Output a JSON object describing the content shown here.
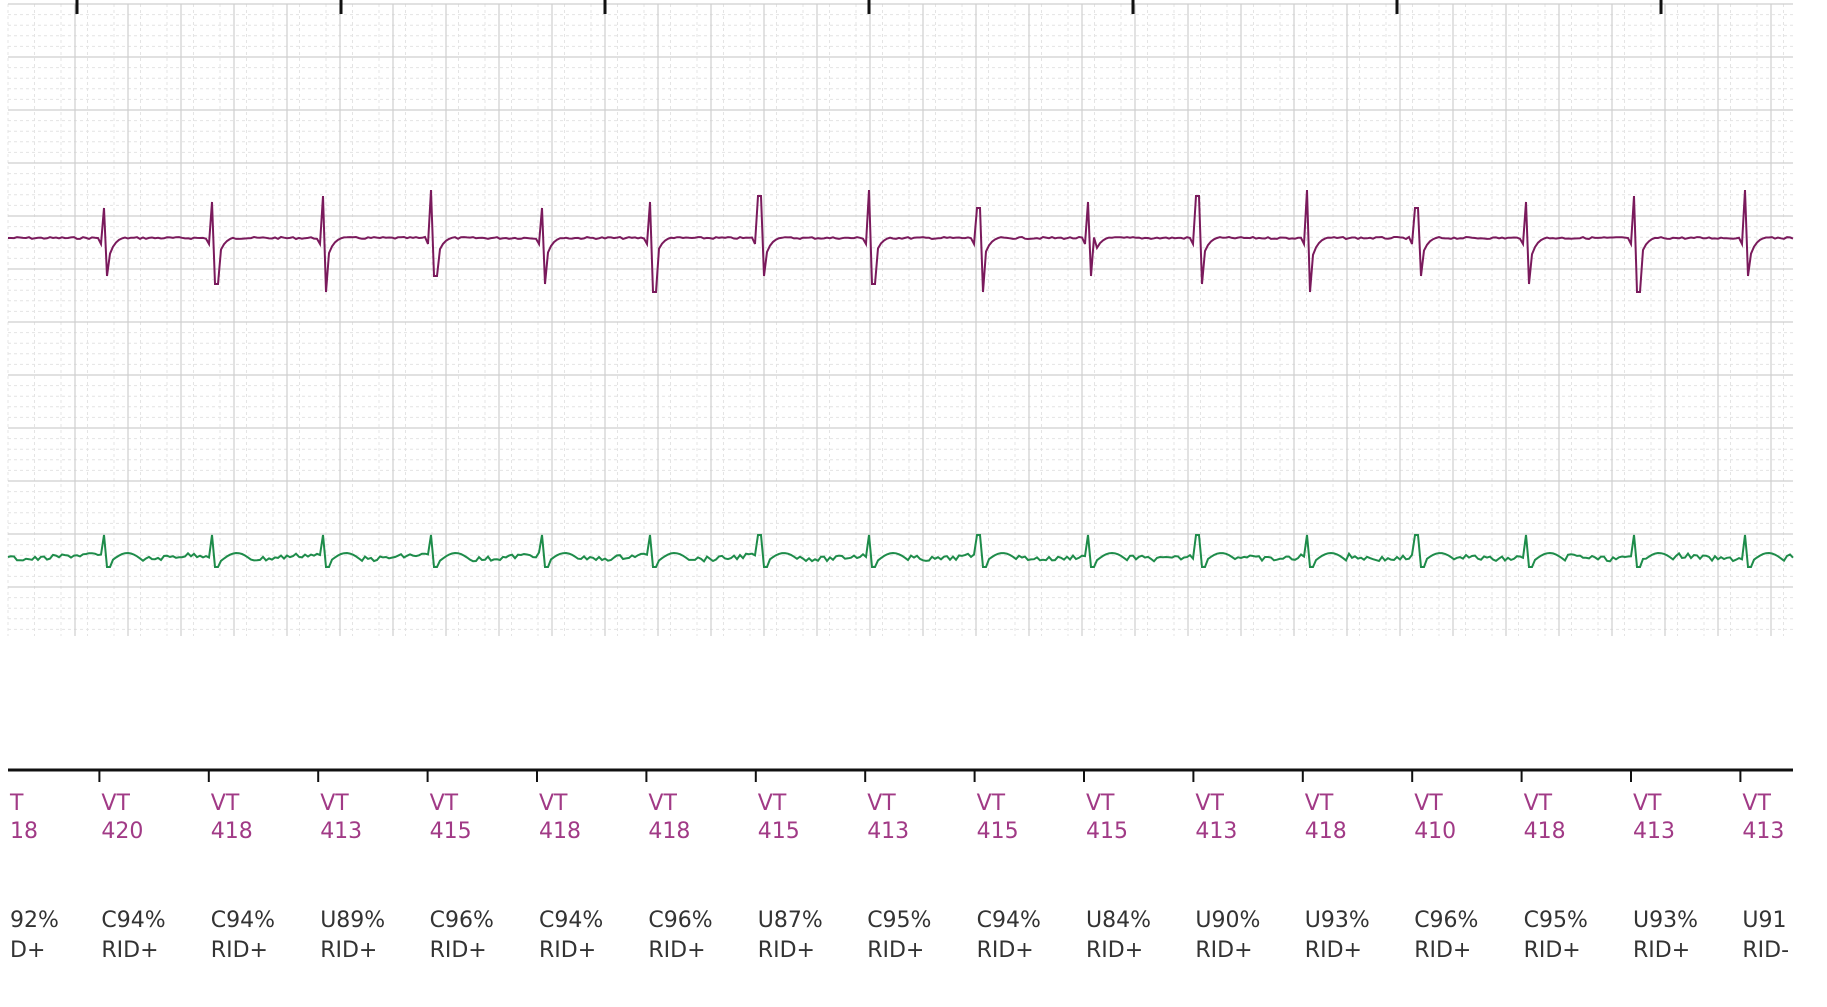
{
  "colors": {
    "background": "#ffffff",
    "grid_minor": "#e4e4e4",
    "grid_major": "#cfcfcf",
    "trace_top": "#7a1a5c",
    "trace_bottom": "#1e8c4a",
    "beat_label": "#a13a86",
    "annotation_text": "#333333",
    "axis": "#111111"
  },
  "beats": [
    {
      "rhythm": "T",
      "rate": "18",
      "conf": "92%",
      "flag": "D+"
    },
    {
      "rhythm": "VT",
      "rate": "420",
      "conf": "C94%",
      "flag": "RID+"
    },
    {
      "rhythm": "VT",
      "rate": "418",
      "conf": "C94%",
      "flag": "RID+"
    },
    {
      "rhythm": "VT",
      "rate": "413",
      "conf": "U89%",
      "flag": "RID+"
    },
    {
      "rhythm": "VT",
      "rate": "415",
      "conf": "C96%",
      "flag": "RID+"
    },
    {
      "rhythm": "VT",
      "rate": "418",
      "conf": "C94%",
      "flag": "RID+"
    },
    {
      "rhythm": "VT",
      "rate": "418",
      "conf": "C96%",
      "flag": "RID+"
    },
    {
      "rhythm": "VT",
      "rate": "415",
      "conf": "U87%",
      "flag": "RID+"
    },
    {
      "rhythm": "VT",
      "rate": "413",
      "conf": "C95%",
      "flag": "RID+"
    },
    {
      "rhythm": "VT",
      "rate": "415",
      "conf": "C94%",
      "flag": "RID+"
    },
    {
      "rhythm": "VT",
      "rate": "415",
      "conf": "U84%",
      "flag": "RID+"
    },
    {
      "rhythm": "VT",
      "rate": "413",
      "conf": "U90%",
      "flag": "RID+"
    },
    {
      "rhythm": "VT",
      "rate": "418",
      "conf": "U93%",
      "flag": "RID+"
    },
    {
      "rhythm": "VT",
      "rate": "410",
      "conf": "C96%",
      "flag": "RID+"
    },
    {
      "rhythm": "VT",
      "rate": "418",
      "conf": "C95%",
      "flag": "RID+"
    },
    {
      "rhythm": "VT",
      "rate": "413",
      "conf": "U93%",
      "flag": "RID+"
    },
    {
      "rhythm": "VT",
      "rate": "413",
      "conf": "U91",
      "flag": "RID-"
    }
  ]
}
